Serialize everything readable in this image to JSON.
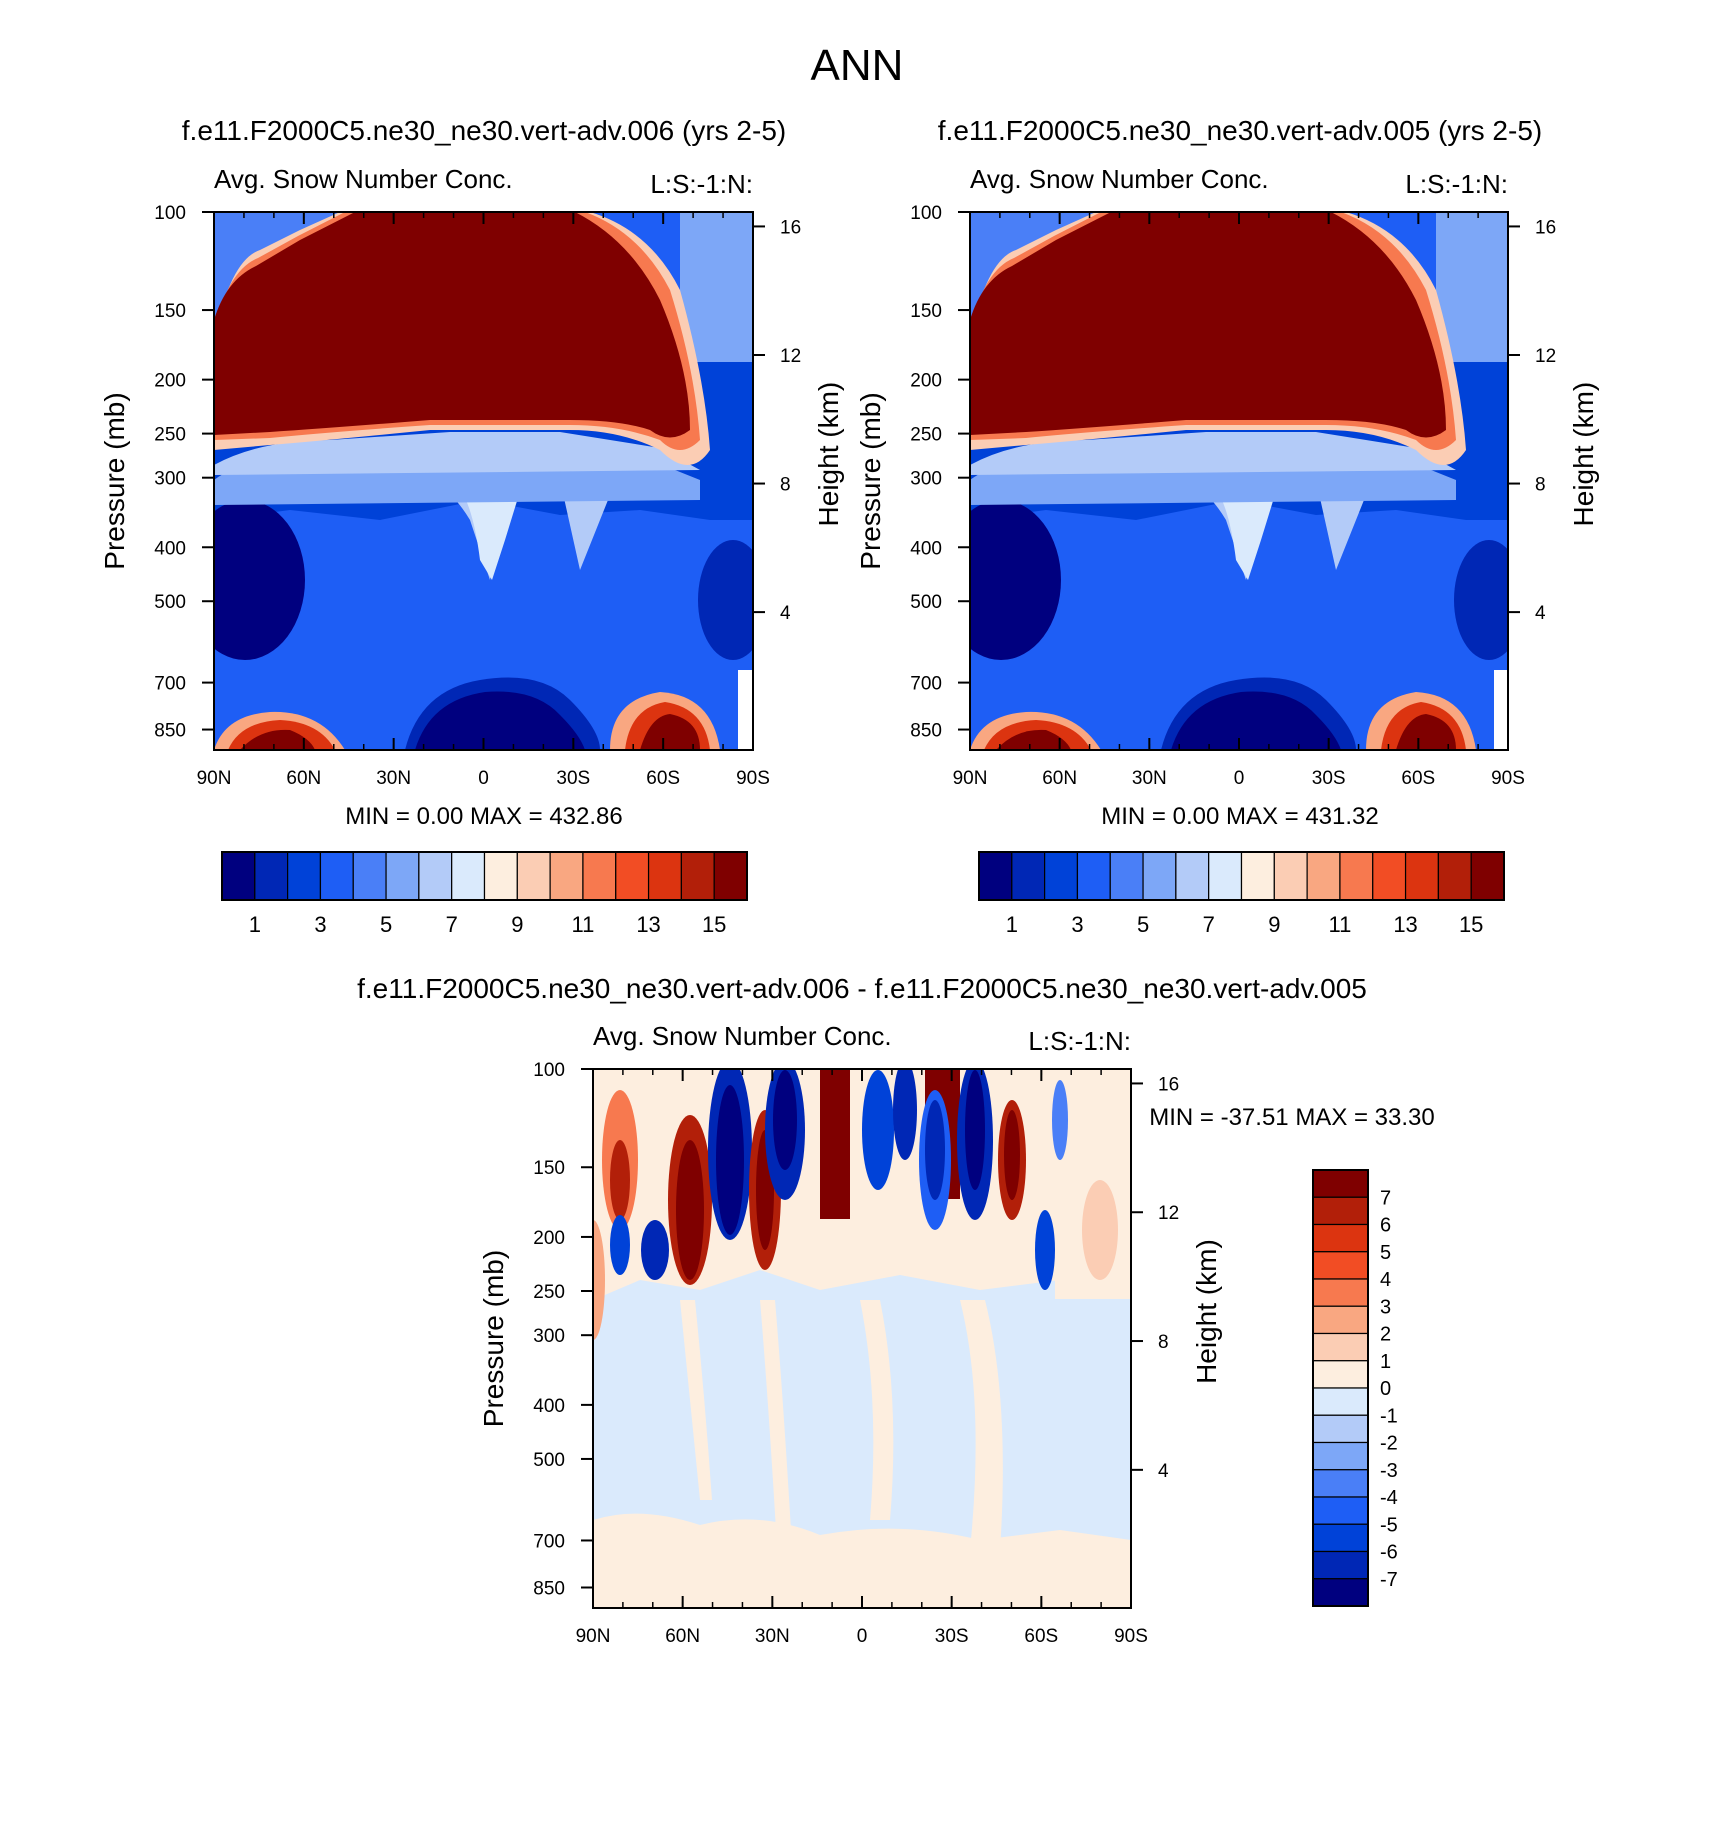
{
  "page_title": "ANN",
  "palette_zonal": [
    "#00007f",
    "#0027b5",
    "#0042d8",
    "#1e5ef5",
    "#4a7ff7",
    "#7da7f7",
    "#b3cbf8",
    "#daeafc",
    "#fdeedf",
    "#fbcdb4",
    "#f9a781",
    "#f7794f",
    "#f24d24",
    "#dc3410",
    "#b21f09",
    "#7f0000"
  ],
  "palette_diff": [
    "#00007f",
    "#0027b5",
    "#0042d8",
    "#1e5ef5",
    "#4a7ff7",
    "#7da7f7",
    "#b3cbf8",
    "#daeafc",
    "#fdeedf",
    "#fbcdb4",
    "#f9a781",
    "#f7794f",
    "#f24d24",
    "#dc3410",
    "#b21f09",
    "#7f0000"
  ],
  "panels": {
    "left": {
      "title": "f.e11.F2000C5.ne30_ne30.vert-adv.006 (yrs 2-5)",
      "var_label": "Avg. Snow Number Conc.",
      "units_label": "L:S:-1:N:",
      "minmax": "MIN =    0.00  MAX = 432.86"
    },
    "right": {
      "title": "f.e11.F2000C5.ne30_ne30.vert-adv.005 (yrs 2-5)",
      "var_label": "Avg. Snow Number Conc.",
      "units_label": "L:S:-1:N:",
      "minmax": "MIN =    0.00  MAX = 431.32"
    },
    "diff": {
      "title": "f.e11.F2000C5.ne30_ne30.vert-adv.006 - f.e11.F2000C5.ne30_ne30.vert-adv.005",
      "var_label": "Avg. Snow Number Conc.",
      "units_label": "L:S:-1:N:",
      "minmax": "MIN = -37.51  MAX =  33.30"
    }
  },
  "chart_data": [
    {
      "type": "heatmap",
      "title": "f.e11.F2000C5.ne30_ne30.vert-adv.006 (yrs 2-5)",
      "xlabel": "",
      "ylabel": "Pressure (mb)",
      "y2label": "Height (km)",
      "x_ticks": [
        "90N",
        "60N",
        "30N",
        "0",
        "30S",
        "60S",
        "90S"
      ],
      "y_ticks": [
        "100",
        "150",
        "200",
        "250",
        "300",
        "400",
        "500",
        "700",
        "850"
      ],
      "y2_ticks": [
        "16",
        "12",
        "8",
        "4"
      ],
      "colorbar_levels": [
        "1",
        "3",
        "5",
        "7",
        "9",
        "11",
        "13",
        "15"
      ],
      "min": 0.0,
      "max": 432.86
    },
    {
      "type": "heatmap",
      "title": "f.e11.F2000C5.ne30_ne30.vert-adv.005 (yrs 2-5)",
      "xlabel": "",
      "ylabel": "Pressure (mb)",
      "y2label": "Height (km)",
      "x_ticks": [
        "90N",
        "60N",
        "30N",
        "0",
        "30S",
        "60S",
        "90S"
      ],
      "y_ticks": [
        "100",
        "150",
        "200",
        "250",
        "300",
        "400",
        "500",
        "700",
        "850"
      ],
      "y2_ticks": [
        "16",
        "12",
        "8",
        "4"
      ],
      "colorbar_levels": [
        "1",
        "3",
        "5",
        "7",
        "9",
        "11",
        "13",
        "15"
      ],
      "min": 0.0,
      "max": 431.32
    },
    {
      "type": "heatmap",
      "title": "f.e11.F2000C5.ne30_ne30.vert-adv.006 - f.e11.F2000C5.ne30_ne30.vert-adv.005",
      "xlabel": "",
      "ylabel": "Pressure (mb)",
      "y2label": "Height (km)",
      "x_ticks": [
        "90N",
        "60N",
        "30N",
        "0",
        "30S",
        "60S",
        "90S"
      ],
      "y_ticks": [
        "100",
        "150",
        "200",
        "250",
        "300",
        "400",
        "500",
        "700",
        "850"
      ],
      "y2_ticks": [
        "16",
        "12",
        "8",
        "4"
      ],
      "colorbar_levels": [
        "7",
        "6",
        "5",
        "4",
        "3",
        "2",
        "1",
        "0",
        "-1",
        "-2",
        "-3",
        "-4",
        "-5",
        "-6",
        "-7"
      ],
      "min": -37.51,
      "max": 33.3
    }
  ]
}
